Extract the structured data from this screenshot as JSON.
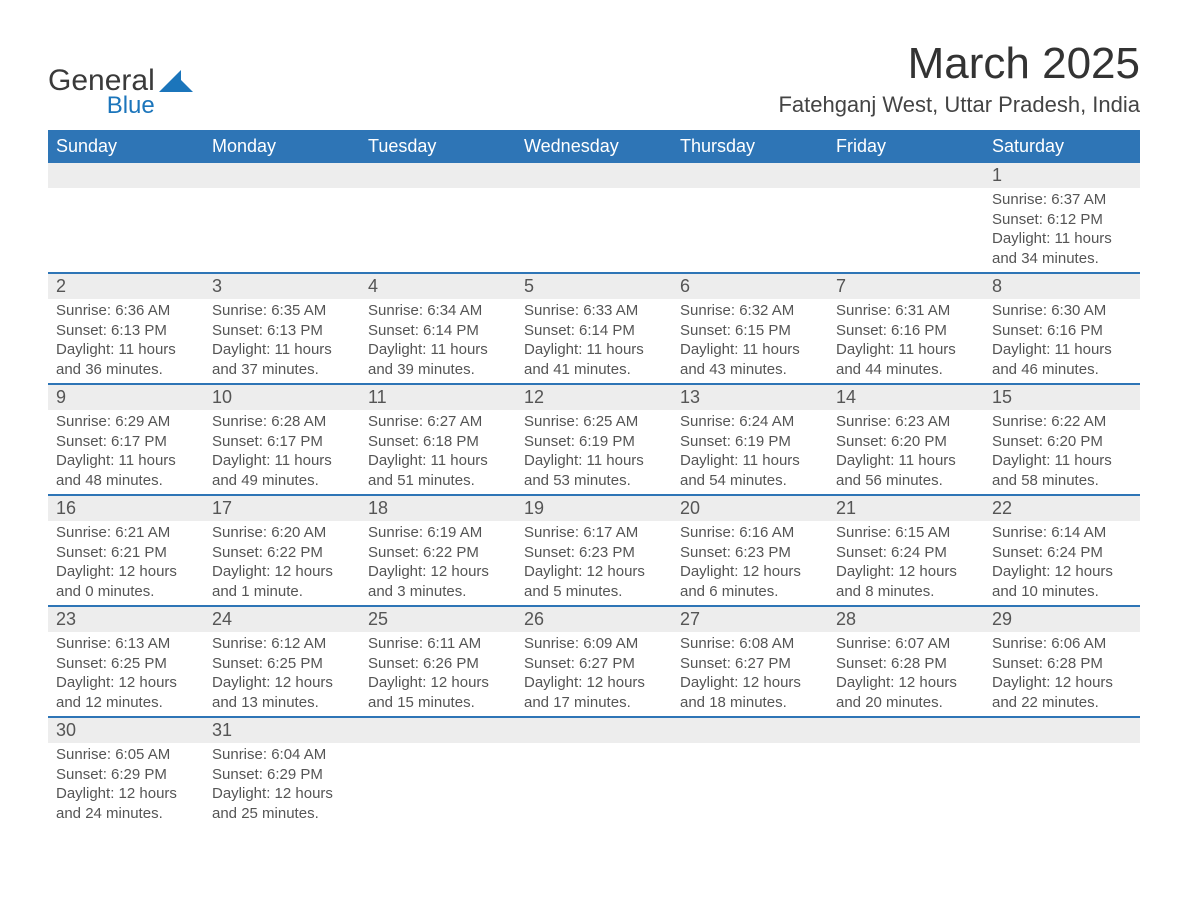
{
  "logo": {
    "text1": "General",
    "text2": "Blue",
    "shape_color": "#1b75bb"
  },
  "title": "March 2025",
  "location": "Fatehganj West, Uttar Pradesh, India",
  "colors": {
    "header_bg": "#2e75b6",
    "header_text": "#ffffff",
    "row_sep": "#2e75b6",
    "daynum_bg": "#ededed",
    "text": "#555555"
  },
  "layout": {
    "columns": 7,
    "rows": 6
  },
  "weekdays": [
    "Sunday",
    "Monday",
    "Tuesday",
    "Wednesday",
    "Thursday",
    "Friday",
    "Saturday"
  ],
  "weeks": [
    [
      null,
      null,
      null,
      null,
      null,
      null,
      {
        "d": "1",
        "sr": "Sunrise: 6:37 AM",
        "ss": "Sunset: 6:12 PM",
        "dl1": "Daylight: 11 hours",
        "dl2": "and 34 minutes."
      }
    ],
    [
      {
        "d": "2",
        "sr": "Sunrise: 6:36 AM",
        "ss": "Sunset: 6:13 PM",
        "dl1": "Daylight: 11 hours",
        "dl2": "and 36 minutes."
      },
      {
        "d": "3",
        "sr": "Sunrise: 6:35 AM",
        "ss": "Sunset: 6:13 PM",
        "dl1": "Daylight: 11 hours",
        "dl2": "and 37 minutes."
      },
      {
        "d": "4",
        "sr": "Sunrise: 6:34 AM",
        "ss": "Sunset: 6:14 PM",
        "dl1": "Daylight: 11 hours",
        "dl2": "and 39 minutes."
      },
      {
        "d": "5",
        "sr": "Sunrise: 6:33 AM",
        "ss": "Sunset: 6:14 PM",
        "dl1": "Daylight: 11 hours",
        "dl2": "and 41 minutes."
      },
      {
        "d": "6",
        "sr": "Sunrise: 6:32 AM",
        "ss": "Sunset: 6:15 PM",
        "dl1": "Daylight: 11 hours",
        "dl2": "and 43 minutes."
      },
      {
        "d": "7",
        "sr": "Sunrise: 6:31 AM",
        "ss": "Sunset: 6:16 PM",
        "dl1": "Daylight: 11 hours",
        "dl2": "and 44 minutes."
      },
      {
        "d": "8",
        "sr": "Sunrise: 6:30 AM",
        "ss": "Sunset: 6:16 PM",
        "dl1": "Daylight: 11 hours",
        "dl2": "and 46 minutes."
      }
    ],
    [
      {
        "d": "9",
        "sr": "Sunrise: 6:29 AM",
        "ss": "Sunset: 6:17 PM",
        "dl1": "Daylight: 11 hours",
        "dl2": "and 48 minutes."
      },
      {
        "d": "10",
        "sr": "Sunrise: 6:28 AM",
        "ss": "Sunset: 6:17 PM",
        "dl1": "Daylight: 11 hours",
        "dl2": "and 49 minutes."
      },
      {
        "d": "11",
        "sr": "Sunrise: 6:27 AM",
        "ss": "Sunset: 6:18 PM",
        "dl1": "Daylight: 11 hours",
        "dl2": "and 51 minutes."
      },
      {
        "d": "12",
        "sr": "Sunrise: 6:25 AM",
        "ss": "Sunset: 6:19 PM",
        "dl1": "Daylight: 11 hours",
        "dl2": "and 53 minutes."
      },
      {
        "d": "13",
        "sr": "Sunrise: 6:24 AM",
        "ss": "Sunset: 6:19 PM",
        "dl1": "Daylight: 11 hours",
        "dl2": "and 54 minutes."
      },
      {
        "d": "14",
        "sr": "Sunrise: 6:23 AM",
        "ss": "Sunset: 6:20 PM",
        "dl1": "Daylight: 11 hours",
        "dl2": "and 56 minutes."
      },
      {
        "d": "15",
        "sr": "Sunrise: 6:22 AM",
        "ss": "Sunset: 6:20 PM",
        "dl1": "Daylight: 11 hours",
        "dl2": "and 58 minutes."
      }
    ],
    [
      {
        "d": "16",
        "sr": "Sunrise: 6:21 AM",
        "ss": "Sunset: 6:21 PM",
        "dl1": "Daylight: 12 hours",
        "dl2": "and 0 minutes."
      },
      {
        "d": "17",
        "sr": "Sunrise: 6:20 AM",
        "ss": "Sunset: 6:22 PM",
        "dl1": "Daylight: 12 hours",
        "dl2": "and 1 minute."
      },
      {
        "d": "18",
        "sr": "Sunrise: 6:19 AM",
        "ss": "Sunset: 6:22 PM",
        "dl1": "Daylight: 12 hours",
        "dl2": "and 3 minutes."
      },
      {
        "d": "19",
        "sr": "Sunrise: 6:17 AM",
        "ss": "Sunset: 6:23 PM",
        "dl1": "Daylight: 12 hours",
        "dl2": "and 5 minutes."
      },
      {
        "d": "20",
        "sr": "Sunrise: 6:16 AM",
        "ss": "Sunset: 6:23 PM",
        "dl1": "Daylight: 12 hours",
        "dl2": "and 6 minutes."
      },
      {
        "d": "21",
        "sr": "Sunrise: 6:15 AM",
        "ss": "Sunset: 6:24 PM",
        "dl1": "Daylight: 12 hours",
        "dl2": "and 8 minutes."
      },
      {
        "d": "22",
        "sr": "Sunrise: 6:14 AM",
        "ss": "Sunset: 6:24 PM",
        "dl1": "Daylight: 12 hours",
        "dl2": "and 10 minutes."
      }
    ],
    [
      {
        "d": "23",
        "sr": "Sunrise: 6:13 AM",
        "ss": "Sunset: 6:25 PM",
        "dl1": "Daylight: 12 hours",
        "dl2": "and 12 minutes."
      },
      {
        "d": "24",
        "sr": "Sunrise: 6:12 AM",
        "ss": "Sunset: 6:25 PM",
        "dl1": "Daylight: 12 hours",
        "dl2": "and 13 minutes."
      },
      {
        "d": "25",
        "sr": "Sunrise: 6:11 AM",
        "ss": "Sunset: 6:26 PM",
        "dl1": "Daylight: 12 hours",
        "dl2": "and 15 minutes."
      },
      {
        "d": "26",
        "sr": "Sunrise: 6:09 AM",
        "ss": "Sunset: 6:27 PM",
        "dl1": "Daylight: 12 hours",
        "dl2": "and 17 minutes."
      },
      {
        "d": "27",
        "sr": "Sunrise: 6:08 AM",
        "ss": "Sunset: 6:27 PM",
        "dl1": "Daylight: 12 hours",
        "dl2": "and 18 minutes."
      },
      {
        "d": "28",
        "sr": "Sunrise: 6:07 AM",
        "ss": "Sunset: 6:28 PM",
        "dl1": "Daylight: 12 hours",
        "dl2": "and 20 minutes."
      },
      {
        "d": "29",
        "sr": "Sunrise: 6:06 AM",
        "ss": "Sunset: 6:28 PM",
        "dl1": "Daylight: 12 hours",
        "dl2": "and 22 minutes."
      }
    ],
    [
      {
        "d": "30",
        "sr": "Sunrise: 6:05 AM",
        "ss": "Sunset: 6:29 PM",
        "dl1": "Daylight: 12 hours",
        "dl2": "and 24 minutes."
      },
      {
        "d": "31",
        "sr": "Sunrise: 6:04 AM",
        "ss": "Sunset: 6:29 PM",
        "dl1": "Daylight: 12 hours",
        "dl2": "and 25 minutes."
      },
      null,
      null,
      null,
      null,
      null
    ]
  ]
}
